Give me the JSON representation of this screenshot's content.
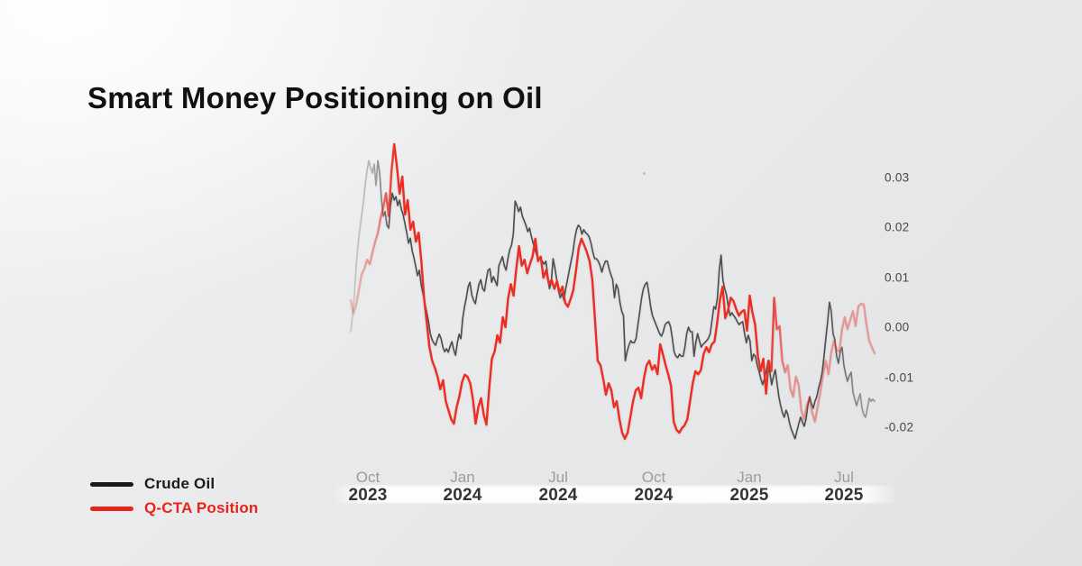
{
  "page": {
    "title": "Smart Money Positioning on Oil"
  },
  "colors": {
    "background": "#e9eaeb",
    "crude_oil_line": "#4d4d4d",
    "qcta_line": "#ee2c22",
    "legend_crude": "#1a1a1a",
    "legend_qcta": "#e8231a",
    "month_label": "#9c9c9c",
    "year_label": "#343434",
    "ytick_label": "#454545"
  },
  "legend": {
    "items": [
      {
        "label": "Crude Oil",
        "color": "#1a1a1a"
      },
      {
        "label": "Q-CTA Position",
        "color": "#e8231a"
      }
    ]
  },
  "chart_data": {
    "type": "line",
    "title": "Smart Money Positioning on Oil",
    "xlabel": "",
    "ylabel": "",
    "grid": false,
    "legend_position": "bottom-left",
    "y_axis": {
      "side": "right",
      "tick_labels": [
        "0.03",
        "0.02",
        "0.01",
        "0.00",
        "-0.01",
        "-0.02"
      ],
      "tick_values": [
        0.03,
        0.02,
        0.01,
        0.0,
        -0.01,
        -0.02
      ],
      "range": [
        -0.0285,
        0.0385
      ]
    },
    "x_axis": {
      "start": "Sep 2023",
      "end": "Sep 2025",
      "ticks": [
        {
          "month": "Oct",
          "year": "2023",
          "pos": 0.033
        },
        {
          "month": "Jan",
          "year": "2024",
          "pos": 0.214
        },
        {
          "month": "Jul",
          "year": "2024",
          "pos": 0.396
        },
        {
          "month": "Oct",
          "year": "2024",
          "pos": 0.578
        },
        {
          "month": "Jan",
          "year": "2025",
          "pos": 0.761
        },
        {
          "month": "Jul",
          "year": "2025",
          "pos": 0.942
        }
      ]
    },
    "series": [
      {
        "name": "Crude Oil",
        "color": "#4d4d4d",
        "stroke_width": 1.6,
        "spacing": "even",
        "values": [
          -0.0009,
          0.0023,
          0.0063,
          0.0123,
          0.0164,
          0.0195,
          0.0222,
          0.0249,
          0.0285,
          0.0312,
          0.0333,
          0.0319,
          0.0308,
          0.0326,
          0.0283,
          0.0333,
          0.0308,
          0.0254,
          0.0222,
          0.0231,
          0.0204,
          0.0198,
          0.0243,
          0.0268,
          0.0254,
          0.0261,
          0.0243,
          0.0254,
          0.0236,
          0.0225,
          0.0207,
          0.0189,
          0.0168,
          0.0178,
          0.0153,
          0.0139,
          0.0121,
          0.0103,
          0.0114,
          0.0085,
          0.0067,
          0.0049,
          0.0031,
          0.0013,
          -0.0013,
          -0.0025,
          -0.0032,
          -0.0036,
          -0.0023,
          -0.0014,
          -0.0023,
          -0.004,
          -0.0049,
          -0.0043,
          -0.005,
          -0.0038,
          -0.0029,
          -0.0045,
          -0.0056,
          -0.0031,
          -0.0014,
          -0.0023,
          0.0018,
          0.0041,
          0.0059,
          0.0081,
          0.009,
          0.0065,
          0.0054,
          0.0047,
          0.0068,
          0.0086,
          0.0095,
          0.0077,
          0.0072,
          0.0095,
          0.0114,
          0.0117,
          0.009,
          0.0101,
          0.0092,
          0.0083,
          0.0123,
          0.0132,
          0.0141,
          0.0123,
          0.0114,
          0.0137,
          0.0155,
          0.0164,
          0.0186,
          0.0252,
          0.0243,
          0.0231,
          0.024,
          0.0222,
          0.0213,
          0.0204,
          0.0191,
          0.0198,
          0.0182,
          0.0168,
          0.0155,
          0.0144,
          0.0137,
          0.0137,
          0.0132,
          0.0126,
          0.0132,
          0.0105,
          0.0077,
          0.009,
          0.0137,
          0.0119,
          0.0095,
          0.0072,
          0.0059,
          0.0068,
          0.0054,
          0.0077,
          0.0095,
          0.0114,
          0.0132,
          0.015,
          0.0177,
          0.0195,
          0.0204,
          0.02,
          0.0186,
          0.0195,
          0.0189,
          0.0186,
          0.018,
          0.0168,
          0.015,
          0.0137,
          0.0137,
          0.0132,
          0.0123,
          0.011,
          0.0123,
          0.0132,
          0.0132,
          0.0117,
          0.0105,
          0.0095,
          0.0059,
          0.0086,
          0.0077,
          0.005,
          0.0032,
          0.0023,
          -0.0067,
          -0.0049,
          -0.0036,
          -0.0027,
          -0.0031,
          -0.0031,
          -0.0022,
          0.0005,
          0.0032,
          0.0059,
          0.0077,
          0.0086,
          0.009,
          0.0068,
          0.0041,
          0.0023,
          0.0014,
          0.0005,
          -0.0004,
          -0.0013,
          -0.0018,
          -0.0009,
          0.0005,
          0.0009,
          0.0011,
          0.0002,
          -0.0022,
          -0.0049,
          -0.0058,
          -0.0061,
          -0.0054,
          -0.0058,
          -0.0058,
          -0.004,
          -0.0013,
          0.0,
          -0.0009,
          -0.0009,
          -0.0058,
          -0.0031,
          -0.0013,
          -0.0027,
          -0.004,
          -0.0034,
          -0.0031,
          -0.0027,
          -0.0022,
          -0.0013,
          0.0014,
          0.0041,
          0.0036,
          0.0059,
          0.0114,
          0.0144,
          0.0095,
          0.0077,
          0.0065,
          0.0041,
          0.0023,
          0.0029,
          0.0023,
          0.0018,
          0.0011,
          0.0005,
          0.0009,
          0.0011,
          -0.0013,
          -0.0031,
          -0.0016,
          -0.0027,
          -0.0067,
          -0.0054,
          -0.0058,
          -0.0076,
          -0.0088,
          -0.0103,
          -0.0115,
          -0.0103,
          -0.009,
          -0.0067,
          -0.009,
          -0.0115,
          -0.0099,
          -0.0085,
          -0.0112,
          -0.0139,
          -0.0157,
          -0.0171,
          -0.018,
          -0.0166,
          -0.0175,
          -0.0193,
          -0.0205,
          -0.0214,
          -0.0223,
          -0.0207,
          -0.0193,
          -0.018,
          -0.0189,
          -0.0198,
          -0.0184,
          -0.0157,
          -0.0139,
          -0.0153,
          -0.0162,
          -0.0148,
          -0.0139,
          -0.0121,
          -0.0108,
          -0.009,
          -0.0058,
          -0.0022,
          0.0011,
          0.005,
          0.0032,
          -0.0013,
          -0.0025,
          -0.0058,
          -0.0072,
          -0.0049,
          -0.004,
          -0.0076,
          -0.0094,
          -0.0108,
          -0.0097,
          -0.009,
          -0.013,
          -0.0144,
          -0.0157,
          -0.0144,
          -0.0133,
          -0.0162,
          -0.0175,
          -0.018,
          -0.0162,
          -0.0142,
          -0.0148,
          -0.0144,
          -0.0148
        ]
      },
      {
        "name": "Q-CTA Position",
        "color": "#ee2c22",
        "stroke_width": 2.4,
        "spacing": "even",
        "values": [
          0.0054,
          0.0027,
          0.0045,
          0.0074,
          0.0105,
          0.0117,
          0.0135,
          0.0126,
          0.015,
          0.0171,
          0.0189,
          0.0218,
          0.024,
          0.0268,
          0.0222,
          0.0312,
          0.0366,
          0.0321,
          0.0267,
          0.0301,
          0.0225,
          0.0254,
          0.0195,
          0.0211,
          0.0171,
          0.0189,
          0.0132,
          0.0059,
          0.0009,
          -0.004,
          -0.0067,
          -0.0081,
          -0.0099,
          -0.0124,
          -0.0106,
          -0.0148,
          -0.0166,
          -0.0184,
          -0.0193,
          -0.016,
          -0.0139,
          -0.011,
          -0.0095,
          -0.0099,
          -0.0112,
          -0.0144,
          -0.0193,
          -0.016,
          -0.0142,
          -0.0175,
          -0.0195,
          -0.0124,
          -0.0063,
          -0.0049,
          -0.0016,
          -0.0031,
          0.002,
          0.0,
          0.0059,
          0.0086,
          0.0063,
          0.0117,
          0.0162,
          0.0123,
          0.0135,
          0.0108,
          0.0126,
          0.0142,
          0.0177,
          0.0132,
          0.0141,
          0.0099,
          0.0114,
          0.0086,
          0.0095,
          0.0077,
          0.0092,
          0.0068,
          0.0081,
          0.0049,
          0.0041,
          0.0056,
          0.0074,
          0.0114,
          0.0159,
          0.0177,
          0.0164,
          0.015,
          0.0132,
          0.0095,
          0.0014,
          -0.0067,
          -0.0076,
          -0.0103,
          -0.0135,
          -0.0112,
          -0.0126,
          -0.016,
          -0.0148,
          -0.0184,
          -0.0211,
          -0.0223,
          -0.0211,
          -0.018,
          -0.0148,
          -0.0126,
          -0.0121,
          -0.0142,
          -0.0103,
          -0.0076,
          -0.0067,
          -0.0085,
          -0.0076,
          -0.0094,
          -0.0034,
          -0.0054,
          -0.0076,
          -0.0095,
          -0.0117,
          -0.0189,
          -0.0205,
          -0.0211,
          -0.0202,
          -0.0196,
          -0.0184,
          -0.0148,
          -0.0112,
          -0.0088,
          -0.0094,
          -0.0086,
          -0.0054,
          -0.004,
          -0.005,
          -0.0034,
          -0.0029,
          0.0009,
          0.0054,
          0.0081,
          0.0018,
          0.0034,
          0.0059,
          0.0052,
          0.0036,
          0.0023,
          0.0031,
          0.0034,
          -0.0007,
          0.0063,
          0.0029,
          0.0005,
          -0.0058,
          -0.0088,
          -0.0063,
          -0.0133,
          -0.0067,
          -0.0088,
          0.0059,
          -0.0004,
          0.0002,
          -0.0067,
          -0.009,
          -0.0076,
          -0.0124,
          -0.0139,
          -0.0099,
          -0.0115,
          -0.0166,
          -0.0184,
          -0.0157,
          -0.0142,
          -0.0171,
          -0.0189,
          -0.016,
          -0.013,
          -0.0094,
          -0.0067,
          -0.0094,
          -0.0052,
          -0.0027,
          -0.0045,
          -0.0049,
          -0.0004,
          0.002,
          -0.0004,
          0.0014,
          0.0032,
          0.0002,
          0.0041,
          0.0047,
          0.0045,
          0.0005,
          -0.0027,
          -0.004,
          -0.0052
        ]
      }
    ]
  }
}
